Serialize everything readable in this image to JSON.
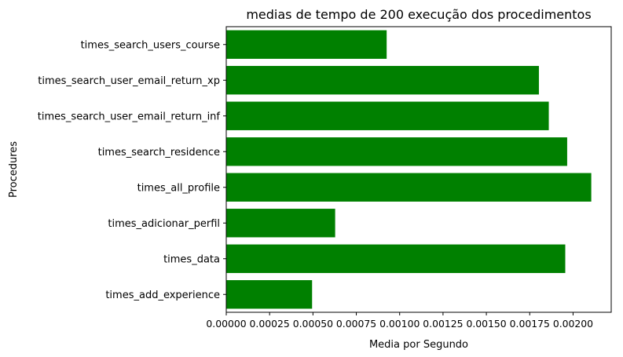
{
  "chart_data": {
    "type": "bar",
    "orientation": "horizontal",
    "title": "medias de tempo de  200 execução dos procedimentos",
    "xlabel": "Media por Segundo",
    "ylabel": "Procedures",
    "categories": [
      "times_add_experience",
      "times_data",
      "times_adicionar_perfil",
      "times_all_profile",
      "times_search_residence",
      "times_search_user_email_return_inf",
      "times_search_user_email_return_xp",
      "times_search_users_course"
    ],
    "values": [
      0.000495,
      0.001955,
      0.000628,
      0.002105,
      0.001966,
      0.00186,
      0.001803,
      0.000925
    ],
    "xlim": [
      0,
      0.00222
    ],
    "xticks": [
      0.0,
      0.00025,
      0.0005,
      0.00075,
      0.001,
      0.00125,
      0.0015,
      0.00175,
      0.002
    ],
    "xtick_labels": [
      "0.00000",
      "0.00025",
      "0.00050",
      "0.00075",
      "0.00100",
      "0.00125",
      "0.00150",
      "0.00175",
      "0.00200"
    ],
    "bar_color": "#008000",
    "grid": false,
    "legend": "none"
  }
}
